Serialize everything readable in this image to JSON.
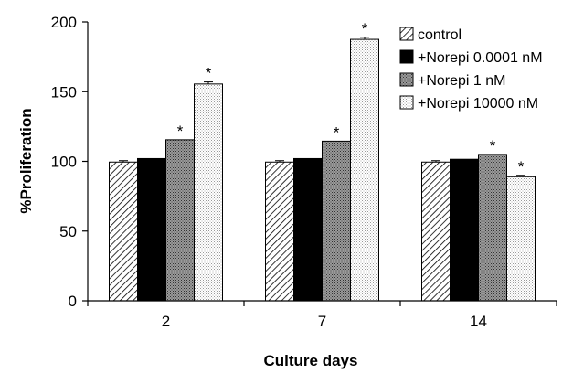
{
  "chart_data": {
    "type": "bar",
    "title": "",
    "xlabel": "Culture days",
    "ylabel": "%Proliferation",
    "categories": [
      "2",
      "7",
      "14"
    ],
    "ylim": [
      0,
      200
    ],
    "yticks": [
      0,
      50,
      100,
      150,
      200
    ],
    "grid": false,
    "legend_position": "top-right",
    "series": [
      {
        "name": "control",
        "pattern": "diagonal-hatch",
        "values": [
          99.5,
          99.5,
          99.5
        ],
        "errors": [
          1.0,
          1.0,
          1.0
        ],
        "significant": [
          false,
          false,
          false
        ]
      },
      {
        "name": "+Norepi 0.0001 nM",
        "pattern": "solid-black",
        "values": [
          102,
          102,
          101.5
        ],
        "errors": [
          0,
          0,
          0
        ],
        "significant": [
          false,
          false,
          false
        ]
      },
      {
        "name": "+Norepi 1 nM",
        "pattern": "dense-dots",
        "values": [
          115.5,
          114.5,
          105
        ],
        "errors": [
          0,
          0,
          0
        ],
        "significant": [
          true,
          true,
          true
        ]
      },
      {
        "name": "+Norepi 10000 nM",
        "pattern": "sparse-dots",
        "values": [
          155.5,
          187.5,
          89
        ],
        "errors": [
          1.5,
          1.5,
          1.0
        ],
        "significant": [
          true,
          true,
          true
        ]
      }
    ],
    "significance_marker": "*"
  }
}
